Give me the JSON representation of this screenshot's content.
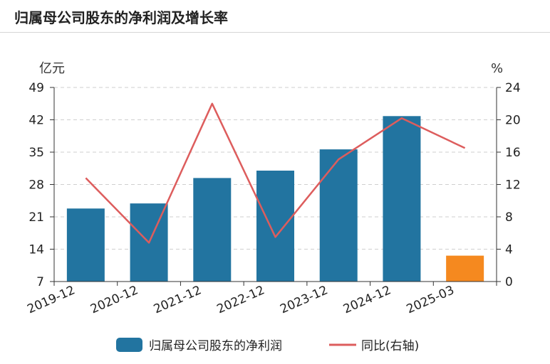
{
  "title": "归属母公司股东的净利润及增长率",
  "chart_data": {
    "type": "bar",
    "title": "归属母公司股东的净利润及增长率",
    "categories": [
      "2019-12",
      "2020-12",
      "2021-12",
      "2022-12",
      "2023-12",
      "2024-12",
      "2025-03"
    ],
    "y_left_unit": "亿元",
    "y_right_unit": "%",
    "ylim_left": [
      7,
      49
    ],
    "yticks_left": [
      7,
      14,
      21,
      28,
      35,
      42,
      49
    ],
    "ylim_right": [
      0,
      24
    ],
    "yticks_right": [
      0,
      4,
      8,
      12,
      16,
      20,
      24
    ],
    "grid": true,
    "legend_position": "bottom",
    "series": [
      {
        "name": "归属母公司股东的净利润",
        "type": "bar",
        "axis": "left",
        "values": [
          22.8,
          23.9,
          29.4,
          31.0,
          35.6,
          42.8,
          12.6
        ],
        "color": "#2274a0",
        "highlight_last_color": "#f5891f"
      },
      {
        "name": "同比(右轴)",
        "type": "line",
        "axis": "right",
        "values": [
          12.8,
          4.8,
          22.0,
          5.5,
          15.1,
          20.2,
          16.5
        ],
        "color": "#dd5d5d"
      }
    ]
  }
}
